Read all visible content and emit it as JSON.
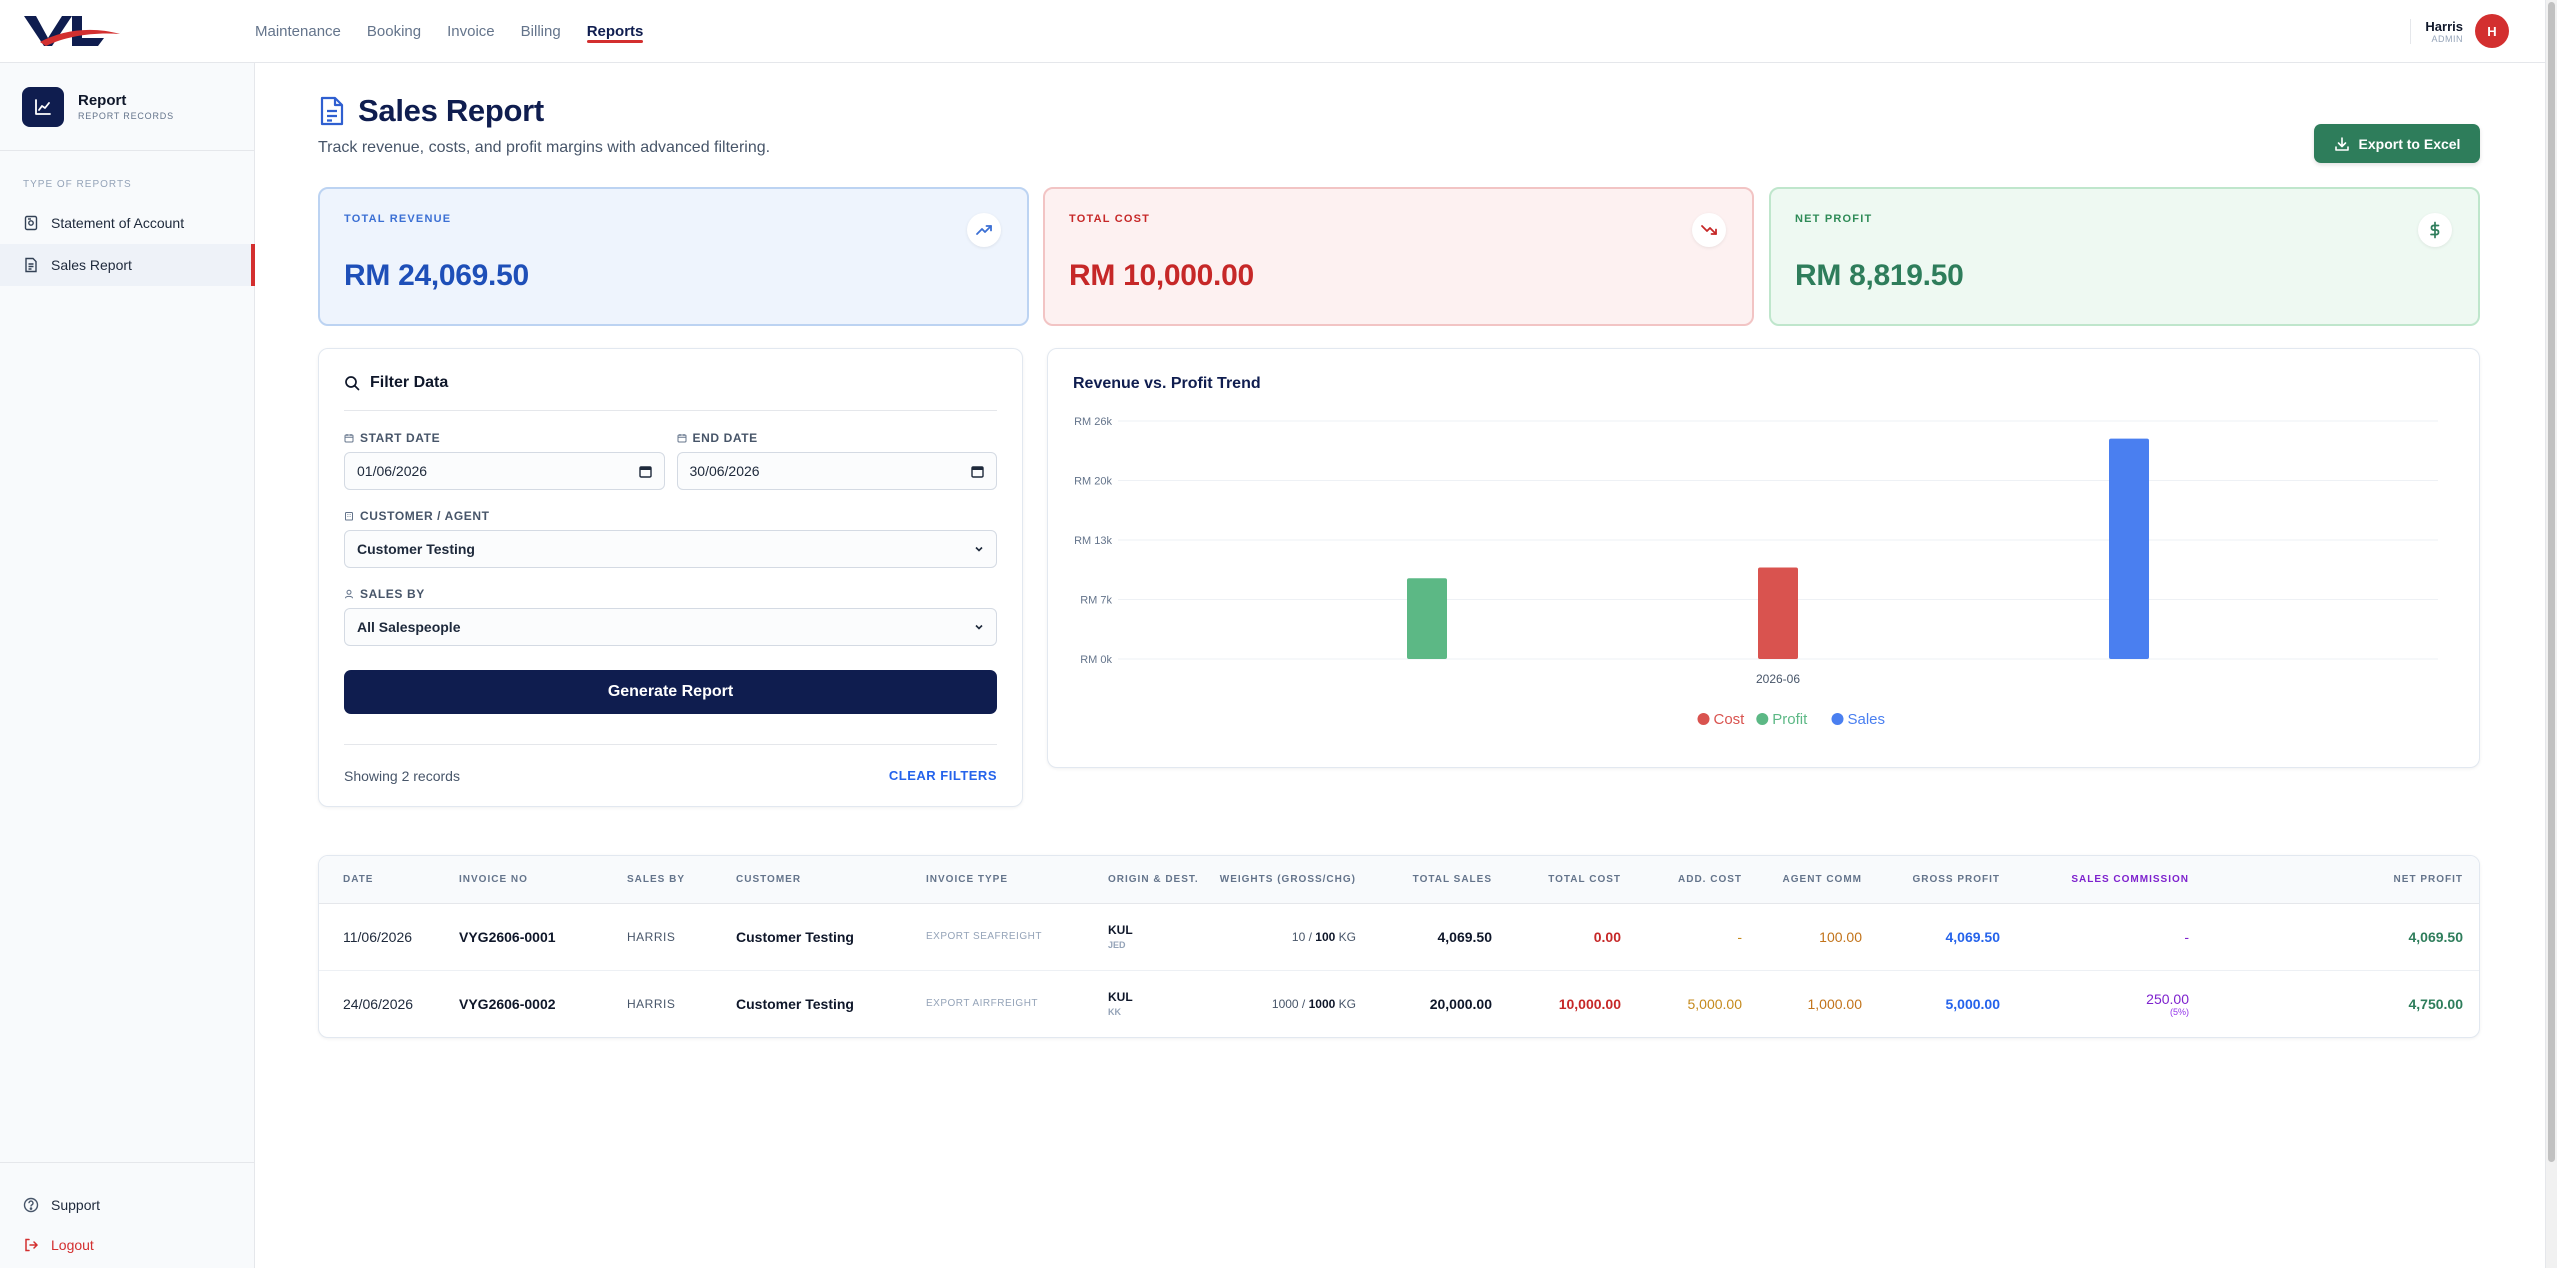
{
  "app": {
    "logo_text": "VL"
  },
  "topnav": {
    "items": [
      "Maintenance",
      "Booking",
      "Invoice",
      "Billing",
      "Reports"
    ],
    "active": "Reports"
  },
  "user": {
    "name": "Harris",
    "role": "ADMIN",
    "initial": "H"
  },
  "sidebar": {
    "title": "Report",
    "subtitle": "REPORT RECORDS",
    "section_label": "TYPE OF REPORTS",
    "items": [
      {
        "label": "Statement of Account",
        "icon": "statement-icon"
      },
      {
        "label": "Sales Report",
        "icon": "document-icon",
        "active": true
      }
    ],
    "support_label": "Support",
    "logout_label": "Logout"
  },
  "page": {
    "title": "Sales Report",
    "subtitle": "Track revenue, costs, and profit margins with advanced filtering.",
    "export_label": "Export to Excel"
  },
  "kpis": {
    "revenue": {
      "label": "TOTAL REVENUE",
      "value": "RM 24,069.50",
      "icon": "trending-up-icon"
    },
    "cost": {
      "label": "TOTAL COST",
      "value": "RM 10,000.00",
      "icon": "trending-down-icon"
    },
    "profit": {
      "label": "NET PROFIT",
      "value": "RM 8,819.50",
      "icon": "dollar-icon"
    }
  },
  "filter": {
    "title": "Filter Data",
    "start_date_label": "START DATE",
    "start_date_value": "01/06/2026",
    "end_date_label": "END DATE",
    "end_date_value": "30/06/2026",
    "customer_label": "CUSTOMER / AGENT",
    "customer_value": "Customer Testing",
    "sales_by_label": "SALES BY",
    "sales_by_value": "All Salespeople",
    "generate_label": "Generate Report",
    "showing_text": "Showing 2 records",
    "clear_label": "CLEAR FILTERS"
  },
  "chart_data": {
    "type": "bar",
    "title": "Revenue vs. Profit Trend",
    "categories": [
      "2026-06"
    ],
    "series": [
      {
        "name": "Profit",
        "color": "#5cb885",
        "values": [
          8819.5
        ]
      },
      {
        "name": "Cost",
        "color": "#d9534f",
        "values": [
          10000
        ]
      },
      {
        "name": "Sales",
        "color": "#4a7ff0",
        "values": [
          24069.5
        ]
      }
    ],
    "legend_order": [
      "Cost",
      "Profit",
      "Sales"
    ],
    "y_ticks": [
      "RM 0k",
      "RM 7k",
      "RM 13k",
      "RM 20k",
      "RM 26k"
    ],
    "ylim": [
      0,
      26000
    ],
    "legend_position": "bottom-center",
    "grid": true
  },
  "table": {
    "columns": [
      "DATE",
      "INVOICE NO",
      "SALES BY",
      "CUSTOMER",
      "INVOICE TYPE",
      "ORIGIN & DEST.",
      "WEIGHTS (GROSS/CHG)",
      "TOTAL SALES",
      "TOTAL COST",
      "ADD. COST",
      "AGENT COMM",
      "GROSS PROFIT",
      "SALES COMMISSION",
      "NET PROFIT"
    ],
    "rows": [
      {
        "date": "11/06/2026",
        "invoice": "VYG2606-0001",
        "sales_by": "HARRIS",
        "customer": "Customer Testing",
        "type": "EXPORT SEAFREIGHT",
        "origin": "KUL",
        "dest": "JED",
        "w_gross": "10",
        "w_chg": "100",
        "w_unit": "KG",
        "total_sales": "4,069.50",
        "total_cost": "0.00",
        "add_cost": "-",
        "agent_comm": "100.00",
        "gross_profit": "4,069.50",
        "sales_comm": "-",
        "sales_comm_pct": "",
        "net_profit": "4,069.50"
      },
      {
        "date": "24/06/2026",
        "invoice": "VYG2606-0002",
        "sales_by": "HARRIS",
        "customer": "Customer Testing",
        "type": "EXPORT AIRFREIGHT",
        "origin": "KUL",
        "dest": "KK",
        "w_gross": "1000",
        "w_chg": "1000",
        "w_unit": "KG",
        "total_sales": "20,000.00",
        "total_cost": "10,000.00",
        "add_cost": "5,000.00",
        "agent_comm": "1,000.00",
        "gross_profit": "5,000.00",
        "sales_comm": "250.00",
        "sales_comm_pct": "(5%)",
        "net_profit": "4,750.00"
      }
    ]
  }
}
